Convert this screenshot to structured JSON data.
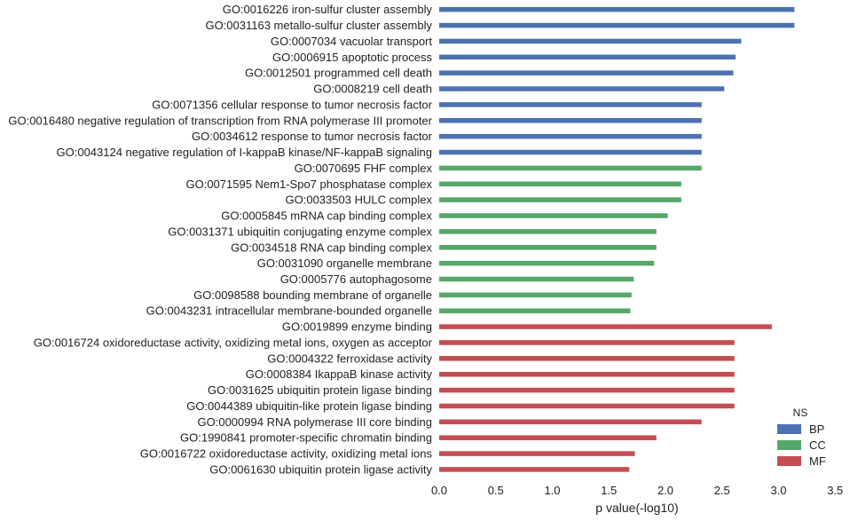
{
  "chart_data": {
    "type": "bar",
    "orientation": "horizontal",
    "xlabel": "p value(-log10)",
    "ylabel": "",
    "xlim": [
      0,
      3.5
    ],
    "xticks": [
      "0.0",
      "0.5",
      "1.0",
      "1.5",
      "2.0",
      "2.5",
      "3.0",
      "3.5"
    ],
    "grid": false,
    "legend": {
      "title": "NS",
      "placement": "bottom-right",
      "entries": [
        {
          "name": "BP",
          "color": "#4c72b0"
        },
        {
          "name": "CC",
          "color": "#55a868"
        },
        {
          "name": "MF",
          "color": "#c44e52"
        }
      ]
    },
    "categories": [
      "GO:0016226 iron-sulfur cluster assembly",
      "GO:0031163 metallo-sulfur cluster assembly",
      "GO:0007034 vacuolar transport",
      "GO:0006915 apoptotic process",
      "GO:0012501 programmed cell death",
      "GO:0008219 cell death",
      "GO:0071356 cellular response to tumor necrosis factor",
      "GO:0016480 negative regulation of transcription from RNA polymerase III promoter",
      "GO:0034612 response to tumor necrosis factor",
      "GO:0043124 negative regulation of I-kappaB kinase/NF-kappaB signaling",
      "GO:0070695 FHF complex",
      "GO:0071595 Nem1-Spo7 phosphatase complex",
      "GO:0033503 HULC complex",
      "GO:0005845 mRNA cap binding complex",
      "GO:0031371 ubiquitin conjugating enzyme complex",
      "GO:0034518 RNA cap binding complex",
      "GO:0031090 organelle membrane",
      "GO:0005776 autophagosome",
      "GO:0098588 bounding membrane of organelle",
      "GO:0043231 intracellular membrane-bounded organelle",
      "GO:0019899 enzyme binding",
      "GO:0016724 oxidoreductase activity, oxidizing metal ions, oxygen as acceptor",
      "GO:0004322 ferroxidase activity",
      "GO:0008384 IkappaB kinase activity",
      "GO:0031625 ubiquitin protein ligase binding",
      "GO:0044389 ubiquitin-like protein ligase binding",
      "GO:0000994 RNA polymerase III core binding",
      "GO:1990841 promoter-specific chromatin binding",
      "GO:0016722 oxidoreductase activity, oxidizing metal ions",
      "GO:0061630 ubiquitin protein ligase activity"
    ],
    "values": [
      3.14,
      3.14,
      2.67,
      2.62,
      2.6,
      2.52,
      2.32,
      2.32,
      2.32,
      2.32,
      2.32,
      2.14,
      2.14,
      2.02,
      1.92,
      1.92,
      1.9,
      1.72,
      1.7,
      1.69,
      2.94,
      2.61,
      2.61,
      2.61,
      2.61,
      2.61,
      2.32,
      1.92,
      1.73,
      1.68
    ],
    "groups": [
      "BP",
      "BP",
      "BP",
      "BP",
      "BP",
      "BP",
      "BP",
      "BP",
      "BP",
      "BP",
      "CC",
      "CC",
      "CC",
      "CC",
      "CC",
      "CC",
      "CC",
      "CC",
      "CC",
      "CC",
      "MF",
      "MF",
      "MF",
      "MF",
      "MF",
      "MF",
      "MF",
      "MF",
      "MF",
      "MF"
    ]
  }
}
